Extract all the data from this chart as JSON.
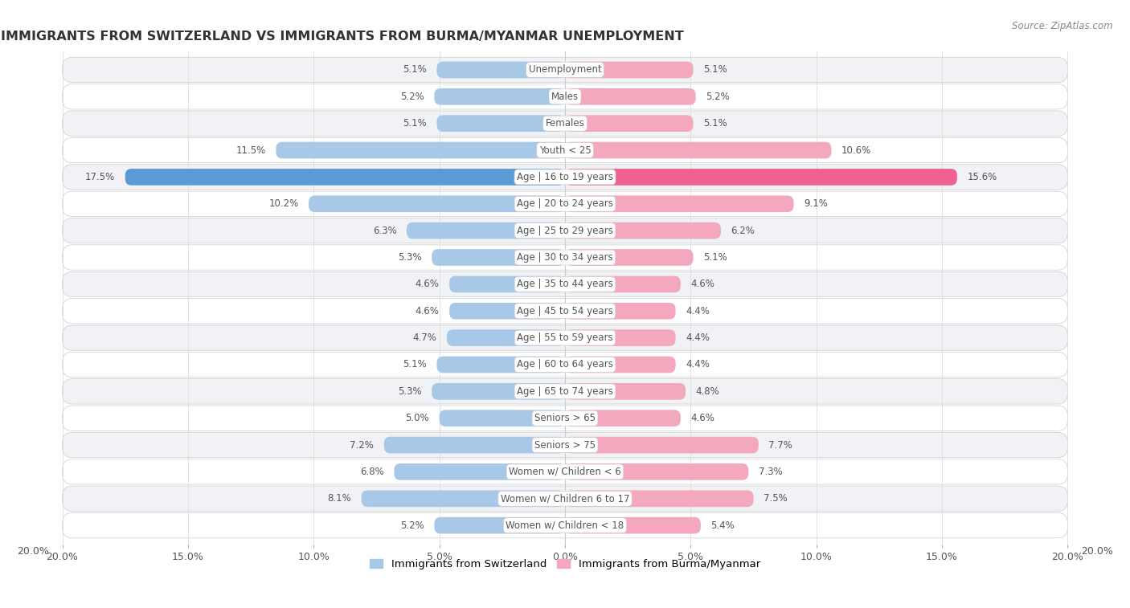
{
  "title": "IMMIGRANTS FROM SWITZERLAND VS IMMIGRANTS FROM BURMA/MYANMAR UNEMPLOYMENT",
  "source": "Source: ZipAtlas.com",
  "categories": [
    "Unemployment",
    "Males",
    "Females",
    "Youth < 25",
    "Age | 16 to 19 years",
    "Age | 20 to 24 years",
    "Age | 25 to 29 years",
    "Age | 30 to 34 years",
    "Age | 35 to 44 years",
    "Age | 45 to 54 years",
    "Age | 55 to 59 years",
    "Age | 60 to 64 years",
    "Age | 65 to 74 years",
    "Seniors > 65",
    "Seniors > 75",
    "Women w/ Children < 6",
    "Women w/ Children 6 to 17",
    "Women w/ Children < 18"
  ],
  "switzerland_values": [
    5.1,
    5.2,
    5.1,
    11.5,
    17.5,
    10.2,
    6.3,
    5.3,
    4.6,
    4.6,
    4.7,
    5.1,
    5.3,
    5.0,
    7.2,
    6.8,
    8.1,
    5.2
  ],
  "burma_values": [
    5.1,
    5.2,
    5.1,
    10.6,
    15.6,
    9.1,
    6.2,
    5.1,
    4.6,
    4.4,
    4.4,
    4.4,
    4.8,
    4.6,
    7.7,
    7.3,
    7.5,
    5.4
  ],
  "switzerland_color": "#a8c8e8",
  "burma_color": "#f4a8be",
  "switzerland_highlight_color": "#5b9bd5",
  "burma_highlight_color": "#f06090",
  "axis_limit": 20.0,
  "fig_bg": "#ffffff",
  "row_bg_odd": "#f0f2f5",
  "row_bg_even": "#ffffff",
  "label_bg": "#ffffff",
  "legend_switzerland": "Immigrants from Switzerland",
  "legend_burma": "Immigrants from Burma/Myanmar",
  "value_color_normal": "#555555",
  "value_color_highlight": "#ffffff",
  "cat_label_color": "#555555"
}
